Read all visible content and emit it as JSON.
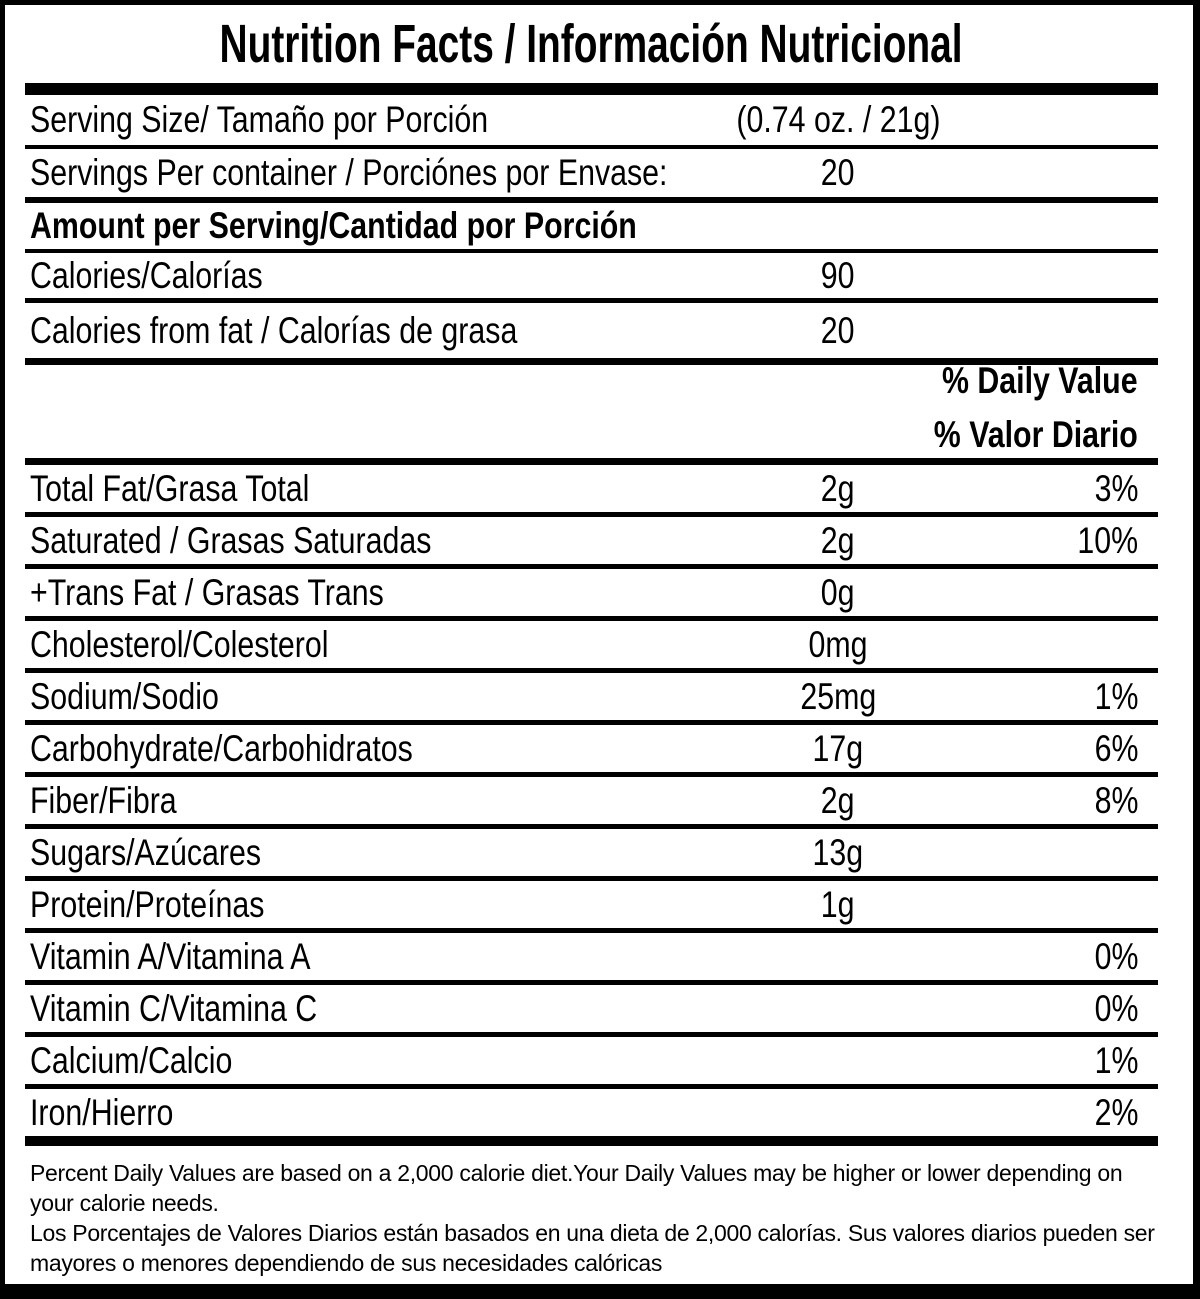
{
  "colors": {
    "ink": "#000000",
    "paper": "#ffffff"
  },
  "label": {
    "title": "Nutrition Facts / Información Nutricional",
    "serving_size": {
      "label": "Serving Size/ Tamaño por Porción",
      "value": "(0.74 oz. / 21g)"
    },
    "servings_per_container": {
      "label": "Servings Per container / Porciónes por Envase:",
      "value": "20"
    },
    "amount_per_serving_heading": "Amount per Serving/Cantidad por Porción",
    "calories": {
      "label": "Calories/Calorías",
      "value": "90"
    },
    "calories_from_fat": {
      "label": "Calories from fat / Calorías de grasa",
      "value": "20"
    },
    "daily_value_heading": {
      "en": "% Daily Value",
      "es": "% Valor Diario"
    },
    "nutrients": [
      {
        "label": "Total Fat/Grasa Total",
        "amount": "2g",
        "dv": "3%"
      },
      {
        "label": "Saturated / Grasas Saturadas",
        "amount": "2g",
        "dv": "10%"
      },
      {
        "label": "+Trans Fat / Grasas Trans",
        "amount": "0g",
        "dv": ""
      },
      {
        "label": "Cholesterol/Colesterol",
        "amount": "0mg",
        "dv": ""
      },
      {
        "label": "Sodium/Sodio",
        "amount": "25mg",
        "dv": "1%"
      },
      {
        "label": "Carbohydrate/Carbohidratos",
        "amount": "17g",
        "dv": "6%"
      },
      {
        "label": "Fiber/Fibra",
        "amount": "2g",
        "dv": "8%"
      },
      {
        "label": "Sugars/Azúcares",
        "amount": "13g",
        "dv": ""
      },
      {
        "label": "Protein/Proteínas",
        "amount": "1g",
        "dv": ""
      },
      {
        "label": "Vitamin A/Vitamina A",
        "amount": "",
        "dv": "0%"
      },
      {
        "label": "Vitamin C/Vitamina C",
        "amount": "",
        "dv": "0%"
      },
      {
        "label": "Calcium/Calcio",
        "amount": "",
        "dv": "1%"
      },
      {
        "label": "Iron/Hierro",
        "amount": "",
        "dv": "2%"
      }
    ],
    "footnotes": {
      "en": "Percent Daily Values are based on a 2,000 calorie diet.Your Daily Values may be higher or lower depending on your calorie needs.",
      "es": "Los Porcentajes de Valores Diarios están basados en una dieta de 2,000 calorías. Sus valores diarios pueden ser mayores o menores dependiendo de sus necesidades calóricas"
    }
  }
}
